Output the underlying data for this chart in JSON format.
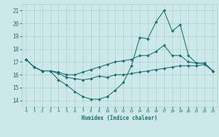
{
  "xlabel": "Humidex (Indice chaleur)",
  "background_color": "#cce8e8",
  "line_color": "#1a7070",
  "grid_color": "#aacfcf",
  "xlim": [
    -0.5,
    23.5
  ],
  "ylim": [
    13.5,
    21.5
  ],
  "xticks": [
    0,
    1,
    2,
    3,
    4,
    5,
    6,
    7,
    8,
    9,
    10,
    11,
    12,
    13,
    14,
    15,
    16,
    17,
    18,
    19,
    20,
    21,
    22,
    23
  ],
  "yticks": [
    14,
    15,
    16,
    17,
    18,
    19,
    20,
    21
  ],
  "series1_x": [
    0,
    1,
    2,
    3,
    4,
    5,
    6,
    7,
    8,
    9,
    10,
    11,
    12,
    13,
    14,
    15,
    16,
    17,
    18,
    19,
    20,
    21,
    22,
    23
  ],
  "series1_y": [
    17.2,
    16.6,
    16.3,
    16.3,
    15.6,
    15.2,
    14.7,
    14.3,
    14.1,
    14.1,
    14.3,
    14.8,
    15.4,
    16.7,
    18.9,
    18.8,
    20.1,
    21.0,
    19.4,
    19.9,
    17.5,
    16.9,
    16.9,
    16.3
  ],
  "series2_x": [
    0,
    1,
    2,
    3,
    4,
    5,
    6,
    7,
    8,
    9,
    10,
    11,
    12,
    13,
    14,
    15,
    16,
    17,
    18,
    19,
    20,
    21,
    22,
    23
  ],
  "series2_y": [
    17.2,
    16.6,
    16.3,
    16.3,
    16.2,
    16.0,
    16.0,
    16.2,
    16.4,
    16.6,
    16.8,
    17.0,
    17.1,
    17.2,
    17.5,
    17.5,
    17.8,
    18.3,
    17.5,
    17.5,
    17.0,
    16.9,
    16.9,
    16.3
  ],
  "series3_x": [
    0,
    1,
    2,
    3,
    4,
    5,
    6,
    7,
    8,
    9,
    10,
    11,
    12,
    13,
    14,
    15,
    16,
    17,
    18,
    19,
    20,
    21,
    22,
    23
  ],
  "series3_y": [
    17.2,
    16.6,
    16.3,
    16.3,
    16.1,
    15.8,
    15.7,
    15.6,
    15.7,
    15.9,
    15.8,
    16.0,
    16.0,
    16.1,
    16.2,
    16.3,
    16.4,
    16.5,
    16.6,
    16.7,
    16.7,
    16.7,
    16.8,
    16.3
  ]
}
